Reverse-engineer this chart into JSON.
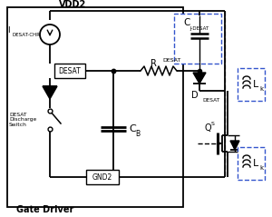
{
  "bg_color": "#ffffff",
  "line_color": "#000000",
  "orange_color": "#cc6600",
  "blue_dashed_color": "#3355cc",
  "title": "Gate Driver",
  "vdd2_label": "VDD2",
  "idesat_label": "I",
  "idesat_sub": "DESAT-CHR",
  "desat_box": "DESAT",
  "gnd2_box": "GND2",
  "rdesat_label": "R",
  "rdesat_sub": "DESAT",
  "cj_label": "C",
  "cj_sub": "J-DESAT",
  "ddesat_label": "D",
  "ddesat_sub": "DESAT",
  "cb_label": "C",
  "cb_sub": "B",
  "qs_label": "Q",
  "qs_sub": "S",
  "lk_label": "L",
  "lk_sub": "k",
  "desat_discharge": "DESAT\nDischarge\nSwitch"
}
